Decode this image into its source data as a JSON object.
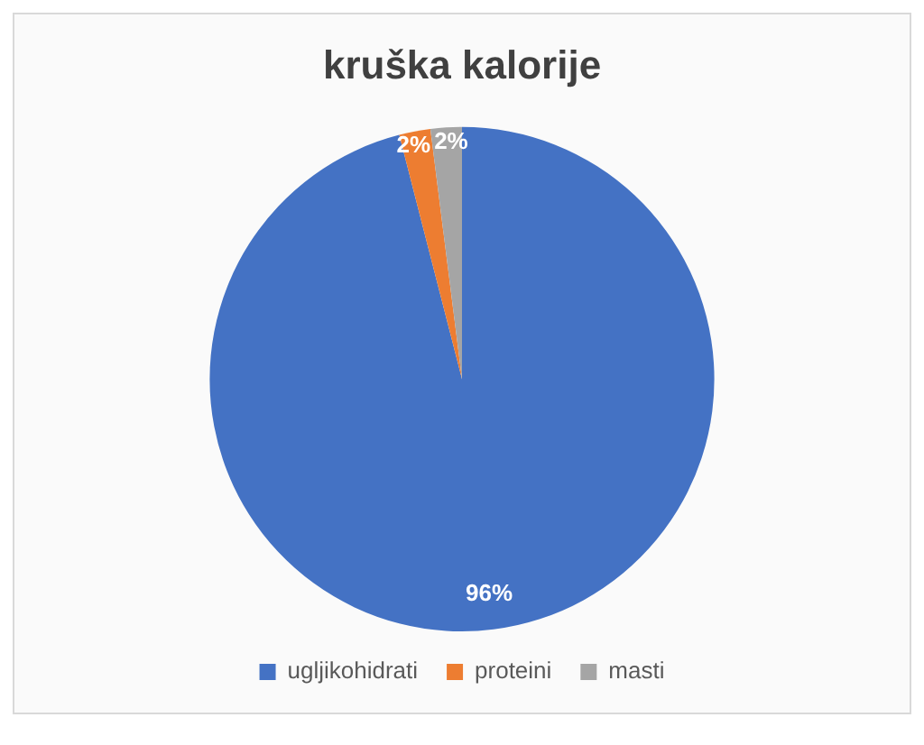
{
  "chart_data": {
    "type": "pie",
    "title": "kruška kalorije",
    "categories": [
      "ugljikohidrati",
      "proteini",
      "masti"
    ],
    "values": [
      96,
      2,
      2
    ],
    "colors": [
      "#4472c4",
      "#ed7d31",
      "#a5a5a5"
    ],
    "value_labels": [
      "96%",
      "2%",
      "2%"
    ],
    "legend": "bottom"
  }
}
